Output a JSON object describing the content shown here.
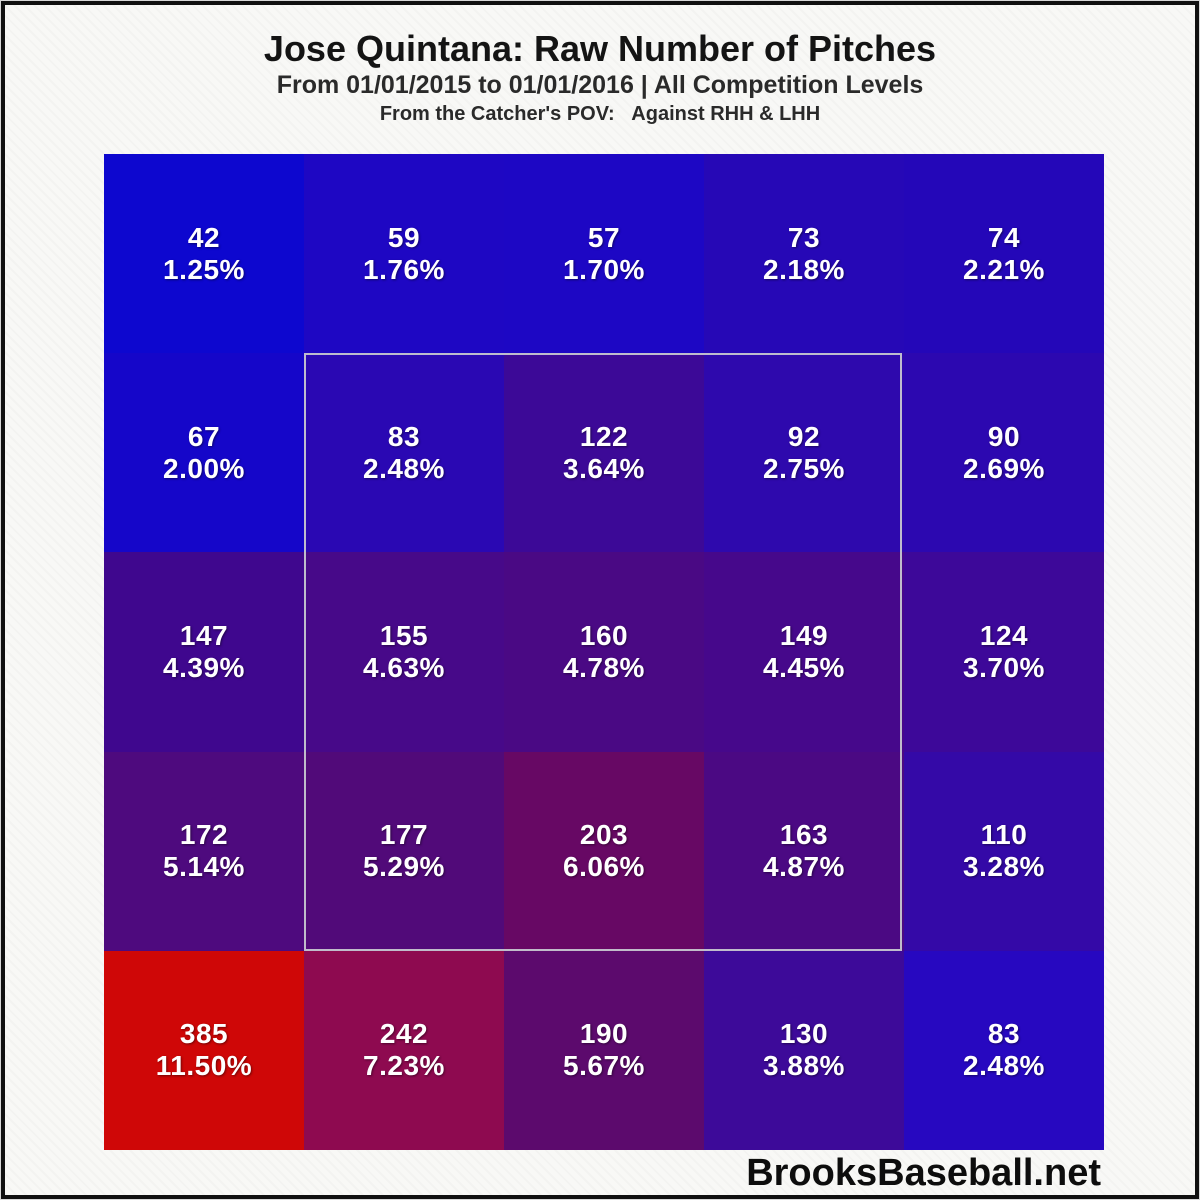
{
  "header": {
    "title": "Jose Quintana: Raw Number of Pitches",
    "subtitle": "From 01/01/2015 to 01/01/2016 | All Competition Levels",
    "pov_line": "From the Catcher's POV:   Against RHH & LHH"
  },
  "footer": {
    "brand": "BrooksBaseball.net"
  },
  "chart_data": {
    "type": "heatmap",
    "title": "Jose Quintana: Raw Number of Pitches",
    "subtitle": "From 01/01/2015 to 01/01/2016 | All Competition Levels",
    "perspective": "From the Catcher's POV: Against RHH & LHH",
    "grid": {
      "rows": 5,
      "cols": 5
    },
    "value_unit": "pitch count with percentage of total",
    "color_scale": {
      "low": "#0d07cf",
      "mid": "#5c0a6d",
      "high": "#cf0707"
    },
    "strike_zone_overlay": {
      "row_start": 2,
      "row_end": 4,
      "col_start": 2,
      "col_end": 4,
      "border_color": "#c6c6d0"
    },
    "cells": [
      [
        {
          "count": "42",
          "pct": "1.25%",
          "color": "#0d07cf"
        },
        {
          "count": "59",
          "pct": "1.76%",
          "color": "#1e07c3"
        },
        {
          "count": "57",
          "pct": "1.70%",
          "color": "#1d07c4"
        },
        {
          "count": "73",
          "pct": "2.18%",
          "color": "#2608b6"
        },
        {
          "count": "74",
          "pct": "2.21%",
          "color": "#2407b8"
        }
      ],
      [
        {
          "count": "67",
          "pct": "2.00%",
          "color": "#1506c9"
        },
        {
          "count": "83",
          "pct": "2.48%",
          "color": "#2a08b3"
        },
        {
          "count": "122",
          "pct": "3.64%",
          "color": "#3c0997"
        },
        {
          "count": "92",
          "pct": "2.75%",
          "color": "#2e09ad"
        },
        {
          "count": "90",
          "pct": "2.69%",
          "color": "#2c08b0"
        }
      ],
      [
        {
          "count": "147",
          "pct": "4.39%",
          "color": "#3f078e"
        },
        {
          "count": "155",
          "pct": "4.63%",
          "color": "#470989"
        },
        {
          "count": "160",
          "pct": "4.78%",
          "color": "#4a0984"
        },
        {
          "count": "149",
          "pct": "4.45%",
          "color": "#46088b"
        },
        {
          "count": "124",
          "pct": "3.70%",
          "color": "#3d0899"
        }
      ],
      [
        {
          "count": "172",
          "pct": "5.14%",
          "color": "#4e0a7e"
        },
        {
          "count": "177",
          "pct": "5.29%",
          "color": "#510a79"
        },
        {
          "count": "203",
          "pct": "6.06%",
          "color": "#670864"
        },
        {
          "count": "163",
          "pct": "4.87%",
          "color": "#4b0983"
        },
        {
          "count": "110",
          "pct": "3.28%",
          "color": "#3409a7"
        }
      ],
      [
        {
          "count": "385",
          "pct": "11.50%",
          "color": "#cf0707"
        },
        {
          "count": "242",
          "pct": "7.23%",
          "color": "#8e0a50"
        },
        {
          "count": "190",
          "pct": "5.67%",
          "color": "#5c0a6d"
        },
        {
          "count": "130",
          "pct": "3.88%",
          "color": "#3d0a99"
        },
        {
          "count": "83",
          "pct": "2.48%",
          "color": "#2708c0"
        }
      ]
    ]
  }
}
